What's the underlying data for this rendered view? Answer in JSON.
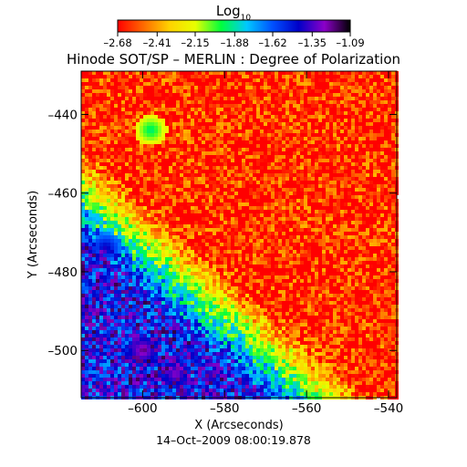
{
  "chart_data": {
    "type": "heatmap",
    "title": "Hinode SOT/SP – MERLIN : Degree of Polarization",
    "xlabel": "X (Arcseconds)",
    "ylabel": "Y (Arcseconds)",
    "timestamp": "14–Oct–2009 08:00:19.878",
    "xlim": [
      -615,
      -538
    ],
    "ylim": [
      -512,
      -429
    ],
    "x_ticks": [
      -600,
      -580,
      -560,
      -540
    ],
    "x_tick_labels": [
      "–600",
      "–580",
      "–560",
      "–540"
    ],
    "y_ticks": [
      -440,
      -460,
      -480,
      -500
    ],
    "y_tick_labels": [
      "–440",
      "–460",
      "–480",
      "–500"
    ],
    "grid": false,
    "colorbar": {
      "label_base": "Log",
      "label_sub": "10",
      "range": [
        -2.68,
        -1.09
      ],
      "ticks": [
        -2.68,
        -2.41,
        -2.15,
        -1.88,
        -1.62,
        -1.35,
        -1.09
      ],
      "tick_labels": [
        "–2.68",
        "–2.41",
        "–2.15",
        "–1.88",
        "–1.62",
        "–1.35",
        "–1.09"
      ],
      "colors": [
        "#ff0000",
        "#ff6a00",
        "#ffd200",
        "#e8ff00",
        "#00ff3c",
        "#00c8ff",
        "#0050ff",
        "#0000c8",
        "#8c00c8",
        "#000000"
      ]
    },
    "field": {
      "background_log10": -2.6,
      "note": "low polarization over most of the field; high polarization patch in the lower-left corner",
      "high_region_log10": -1.45,
      "high_region_center": [
        -604,
        -498
      ],
      "hot_spots_log10": [
        {
          "x": -600,
          "y": -500,
          "value": -1.2
        },
        {
          "x": -592,
          "y": -506,
          "value": -1.25
        },
        {
          "x": -609,
          "y": -474,
          "value": -1.4
        },
        {
          "x": -598,
          "y": -444,
          "value": -1.9
        }
      ]
    }
  }
}
